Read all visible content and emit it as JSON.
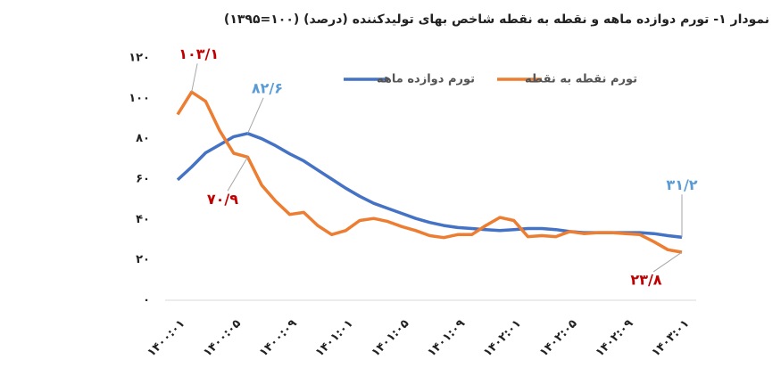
{
  "chart_data": {
    "type": "line",
    "title": "نمودار ۱- تورم دوازده ماهه و نقطه به نقطه شاخص بهای تولیدکننده (درصد) (۱۰۰=۱۳۹۵)",
    "categories": [
      "۱۴۰۰:۰۱",
      null,
      null,
      null,
      "۱۴۰۰:۰۵",
      null,
      null,
      null,
      "۱۴۰۰:۰۹",
      null,
      null,
      null,
      "۱۴۰۱:۰۱",
      null,
      null,
      null,
      "۱۴۰۱:۰۵",
      null,
      null,
      null,
      "۱۴۰۱:۰۹",
      null,
      null,
      null,
      "۱۴۰۲:۰۱",
      null,
      null,
      null,
      "۱۴۰۲:۰۵",
      null,
      null,
      null,
      "۱۴۰۲:۰۹",
      null,
      null,
      null,
      "۱۴۰۳:۰۱"
    ],
    "series": [
      {
        "name": "تورم دوازده ماهه",
        "color": "#4472c4",
        "label_color": "#5b9bd5",
        "values": [
          59.6,
          66,
          73,
          77,
          81,
          82.6,
          80,
          76.5,
          72.5,
          69,
          64.5,
          60,
          55.5,
          51.5,
          48,
          45.5,
          43,
          40.5,
          38.5,
          37,
          36,
          35.5,
          35,
          34.5,
          35,
          35.5,
          35.5,
          35,
          34,
          33.5,
          33.5,
          33.5,
          33.5,
          33.5,
          33,
          32,
          31.2
        ],
        "value_labels": [
          null,
          null,
          null,
          null,
          null,
          "۸۲/۶",
          null,
          null,
          null,
          null,
          null,
          null,
          null,
          null,
          null,
          null,
          null,
          null,
          null,
          null,
          null,
          null,
          null,
          null,
          null,
          null,
          null,
          null,
          null,
          null,
          null,
          null,
          null,
          null,
          null,
          null,
          "۳۱/۲"
        ]
      },
      {
        "name": "تورم نقطه به نقطه",
        "color": "#ed7d31",
        "label_color": "#c00000",
        "values": [
          92,
          103.1,
          98.5,
          84,
          72.8,
          70.9,
          57,
          49,
          42.5,
          43.5,
          37,
          32.5,
          34.5,
          39.5,
          40.5,
          39,
          36.5,
          34.5,
          32,
          31,
          32.5,
          32.5,
          37,
          41,
          39.5,
          31.5,
          32,
          31.5,
          34,
          33,
          33.5,
          33.5,
          33,
          32.5,
          29,
          25,
          23.8
        ],
        "value_labels": [
          null,
          "۱۰۳/۱",
          null,
          null,
          null,
          "۷۰/۹",
          null,
          null,
          null,
          null,
          null,
          null,
          null,
          null,
          null,
          null,
          null,
          null,
          null,
          null,
          null,
          null,
          null,
          null,
          null,
          null,
          null,
          null,
          null,
          null,
          null,
          null,
          null,
          null,
          null,
          null,
          "۲۳/۸"
        ]
      }
    ],
    "ylim": [
      0,
      120
    ],
    "yticks": [
      {
        "value": 0,
        "label": "۰"
      },
      {
        "value": 20,
        "label": "۲۰"
      },
      {
        "value": 40,
        "label": "۴۰"
      },
      {
        "value": 60,
        "label": "۶۰"
      },
      {
        "value": 80,
        "label": "۸۰"
      },
      {
        "value": 100,
        "label": "۱۰۰"
      },
      {
        "value": 120,
        "label": "۱۲۰"
      }
    ],
    "grid": false
  }
}
